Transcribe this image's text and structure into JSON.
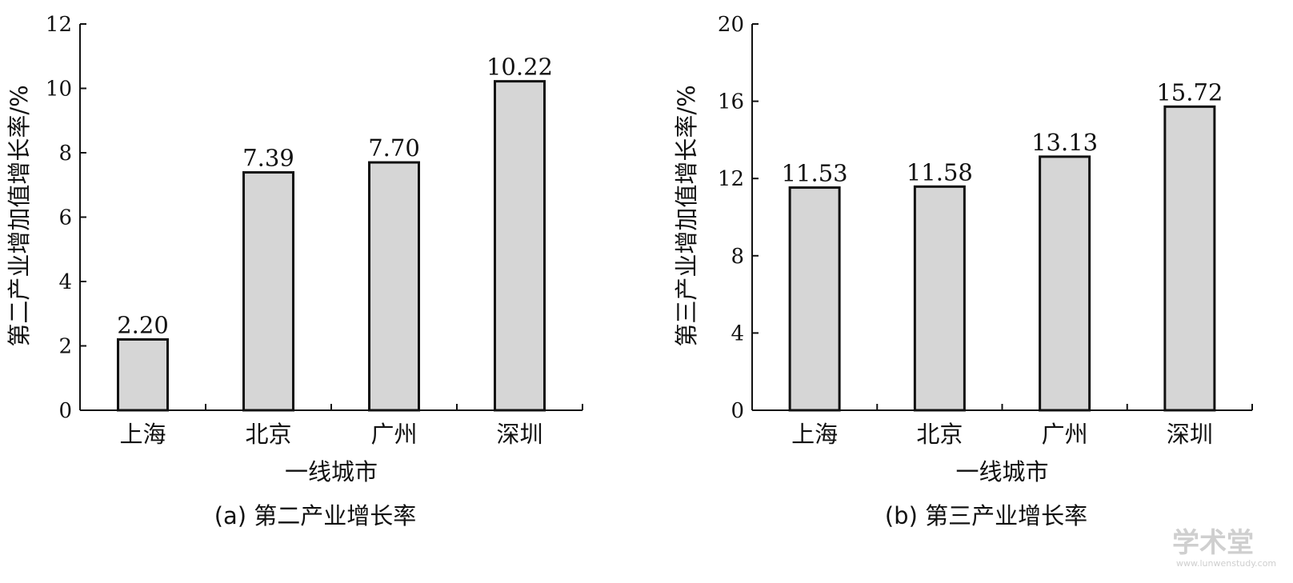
{
  "chart_data": [
    {
      "type": "bar",
      "caption": "(a) 第二产业增长率",
      "xlabel": "一线城市",
      "ylabel": "第二产业增加值增长率/%",
      "categories": [
        "上海",
        "北京",
        "广州",
        "深圳"
      ],
      "values": [
        2.2,
        7.39,
        7.7,
        10.22
      ],
      "value_labels": [
        "2.20",
        "7.39",
        "7.70",
        "10.22"
      ],
      "ylim": [
        0,
        12
      ],
      "yticks": [
        0,
        2,
        4,
        6,
        8,
        10,
        12
      ],
      "grid": false,
      "bar_color": "#d6d6d6"
    },
    {
      "type": "bar",
      "caption": "(b) 第三产业增长率",
      "xlabel": "一线城市",
      "ylabel": "第三产业增加值增长率/%",
      "categories": [
        "上海",
        "北京",
        "广州",
        "深圳"
      ],
      "values": [
        11.53,
        11.58,
        13.13,
        15.72
      ],
      "value_labels": [
        "11.53",
        "11.58",
        "13.13",
        "15.72"
      ],
      "ylim": [
        0,
        20
      ],
      "yticks": [
        0,
        4,
        8,
        12,
        16,
        20
      ],
      "grid": false,
      "bar_color": "#d6d6d6"
    }
  ],
  "watermark": {
    "main": "学术堂",
    "sub": "www.lunwenstudy.com"
  }
}
